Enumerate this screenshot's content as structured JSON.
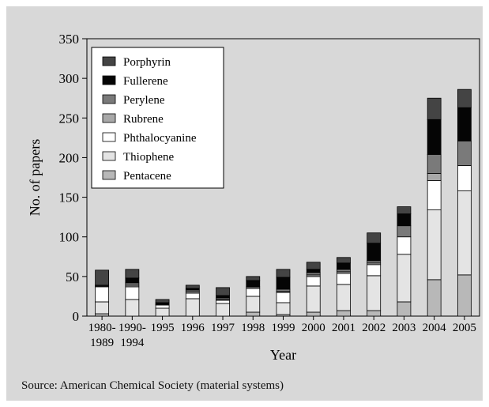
{
  "source_note": "Source: American Chemical Society (material systems)",
  "colors": {
    "panel_background": "#d8d8d8",
    "Porphyrin": "#444444",
    "Fullerene": "#050505",
    "Perylene": "#7a7a7a",
    "Rubrene": "#a8a8a8",
    "Phthalocyanine": "#ffffff",
    "Thiophene": "#e4e4e4",
    "Pentacene": "#b8b8b8"
  },
  "chart_data": {
    "type": "bar",
    "stacked": true,
    "title": "",
    "xlabel": "Year",
    "ylabel": "No. of papers",
    "ylim": [
      0,
      350
    ],
    "yticks": [
      0,
      50,
      100,
      150,
      200,
      250,
      300,
      350
    ],
    "grid": false,
    "legend_position": "top-left",
    "categories": [
      "1980-\n1989",
      "1990-\n1994",
      "1995",
      "1996",
      "1997",
      "1998",
      "1999",
      "2000",
      "2001",
      "2002",
      "2003",
      "2004",
      "2005"
    ],
    "series": [
      {
        "name": "Pentacene",
        "values": [
          3,
          0,
          0,
          0,
          0,
          5,
          2,
          5,
          7,
          7,
          18,
          46,
          52
        ]
      },
      {
        "name": "Thiophene",
        "values": [
          15,
          21,
          10,
          22,
          16,
          20,
          15,
          33,
          33,
          44,
          60,
          88,
          106
        ]
      },
      {
        "name": "Phthalocyanine",
        "values": [
          19,
          16,
          4,
          7,
          4,
          10,
          13,
          12,
          14,
          14,
          22,
          37,
          32
        ]
      },
      {
        "name": "Rubrene",
        "values": [
          1,
          2,
          0,
          2,
          1,
          0,
          1,
          2,
          2,
          2,
          0,
          9,
          0
        ]
      },
      {
        "name": "Perylene",
        "values": [
          1,
          3,
          1,
          2,
          2,
          2,
          3,
          3,
          3,
          3,
          14,
          24,
          31
        ]
      },
      {
        "name": "Fullerene",
        "values": [
          0,
          6,
          2,
          2,
          3,
          8,
          15,
          4,
          8,
          22,
          15,
          44,
          42
        ]
      },
      {
        "name": "Porphyrin",
        "values": [
          19,
          11,
          4,
          4,
          10,
          5,
          10,
          9,
          7,
          13,
          9,
          27,
          23
        ]
      }
    ],
    "legend_order": [
      "Porphyrin",
      "Fullerene",
      "Perylene",
      "Rubrene",
      "Phthalocyanine",
      "Thiophene",
      "Pentacene"
    ]
  }
}
